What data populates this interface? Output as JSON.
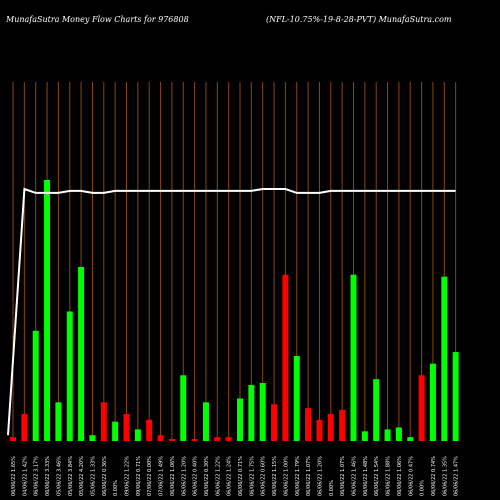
{
  "header": {
    "left_title": "MunafaSutra  Money Flow  Charts for 976808",
    "right_title": "(NFL-10.75%-19-8-28-PVT) MunafaSutra.com"
  },
  "colors": {
    "background": "#000000",
    "gridline": "#8B4513",
    "up_bar": "#00ff00",
    "down_bar": "#ff0000",
    "line": "#ffffff"
  },
  "chart_data": {
    "type": "bar",
    "categories": [
      "06/06/22 1.65%",
      "04/06/22 1.42%",
      "06/06/22 3.17%",
      "06/06/22 3.33%",
      "05/06/22 3.46%",
      "05/06/22 3.84%",
      "05/06/22 4.20%",
      "05/06/22 1.33%",
      "06/06/22 0.36%",
      "0.00%",
      "09/06/22 1.22%",
      "09/06/22 0.71%",
      "07/06/22 0.00%",
      "07/06/22 1.49%",
      "06/06/22 1.06%",
      "06/06/22 1.20%",
      "06/06/22 0.40%",
      "06/06/22 0.30%",
      "06/06/22 1.22%",
      "06/06/22 1.24%",
      "06/06/22 0.71%",
      "06/06/22 1.75%",
      "06/06/22 0.60%",
      "06/06/22 1.15%",
      "06/06/22 1.00%",
      "06/06/22 1.79%",
      "06/06/22 1.07%",
      "06/06/22 1.20%",
      "0.00%",
      "06/06/22 1.07%",
      "06/06/22 1.46%",
      "06/06/22 1.48%",
      "06/06/22 1.54%",
      "06/06/22 1.88%",
      "06/06/22 1.06%",
      "06/06/22 0.47%",
      "0.00%",
      "06/06/22 0.74%",
      "06/06/22 1.35%",
      "06/06/22 1.47%"
    ],
    "values": [
      2,
      14,
      57,
      135,
      20,
      67,
      90,
      3,
      20,
      10,
      14,
      6,
      11,
      3,
      1,
      34,
      1,
      20,
      2,
      2,
      22,
      29,
      30,
      19,
      86,
      44,
      17,
      11,
      14,
      16,
      86,
      5,
      32,
      6,
      7,
      2,
      34,
      40,
      85,
      46
    ],
    "directions": [
      "down",
      "down",
      "up",
      "up",
      "up",
      "up",
      "up",
      "up",
      "down",
      "up",
      "down",
      "up",
      "down",
      "down",
      "down",
      "up",
      "down",
      "up",
      "down",
      "down",
      "up",
      "up",
      "up",
      "down",
      "down",
      "up",
      "down",
      "down",
      "red_skip",
      "down",
      "up",
      "up",
      "up",
      "up",
      "up",
      "up",
      "down",
      "up",
      "up",
      "up"
    ],
    "line": [
      3,
      130,
      128,
      128,
      128,
      129,
      129,
      128,
      128,
      129,
      129,
      129,
      129,
      129,
      129,
      129,
      129,
      129,
      129,
      129,
      129,
      129,
      130,
      130,
      130,
      128,
      128,
      128,
      129,
      129,
      129,
      129,
      129,
      129,
      129,
      129,
      129,
      129,
      129,
      129
    ],
    "ylim": [
      0,
      135
    ],
    "grid": true
  }
}
